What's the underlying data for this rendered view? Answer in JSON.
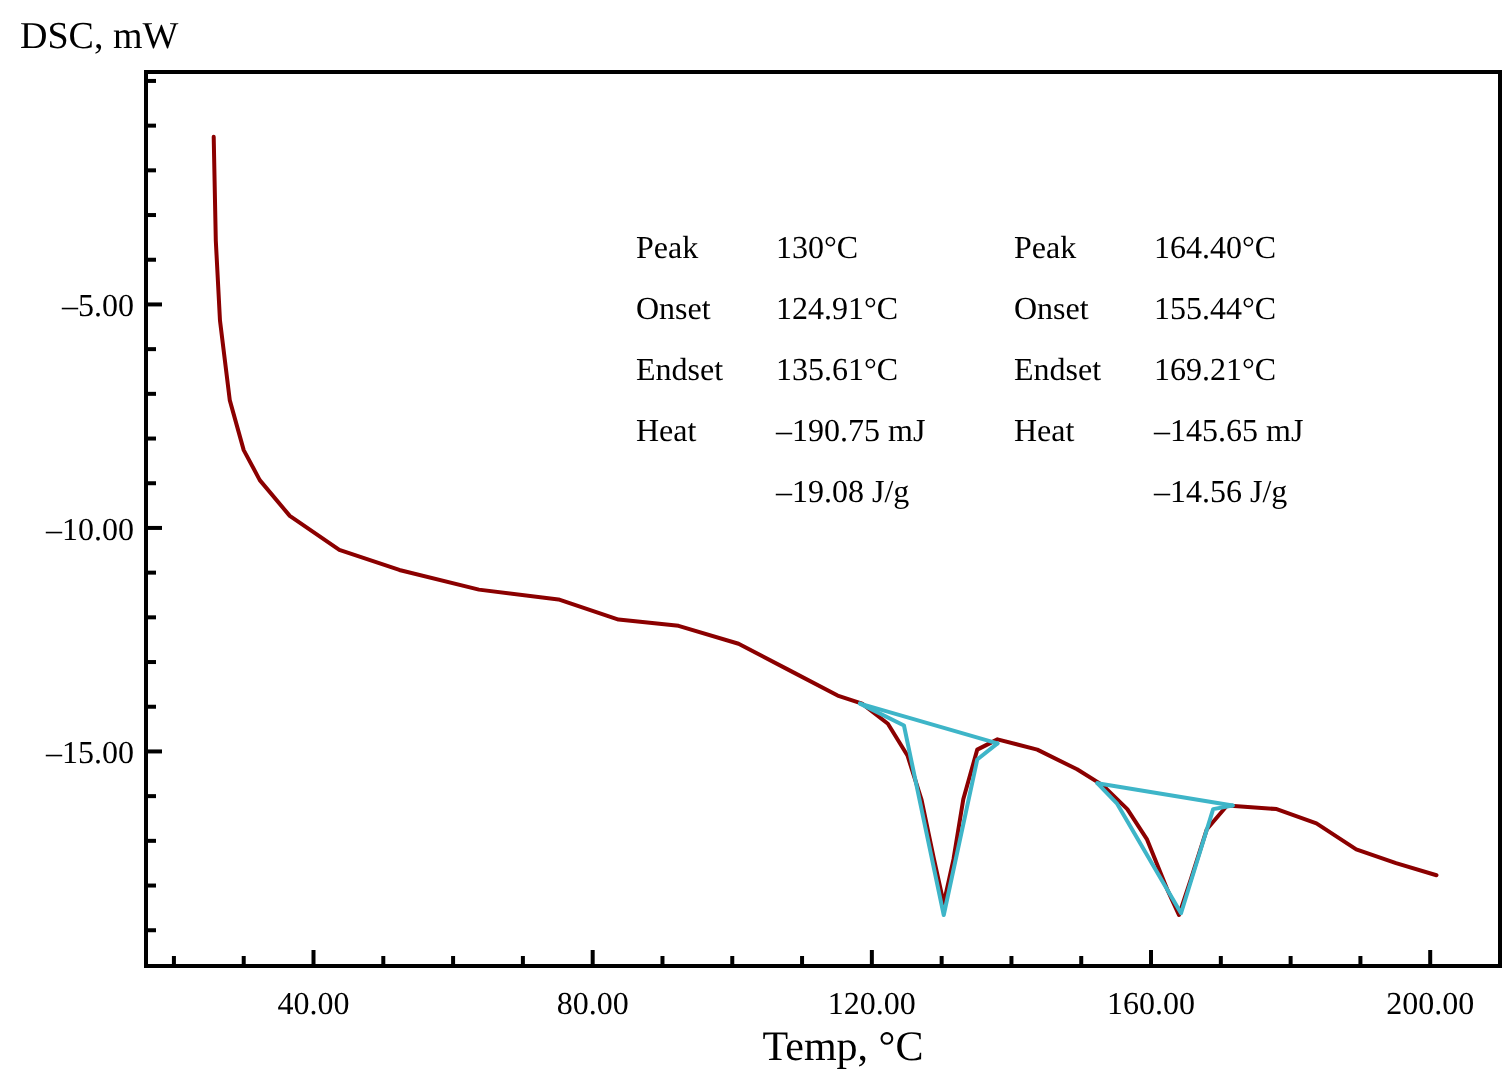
{
  "chart_data": {
    "type": "line",
    "xlabel": "Temp, °C",
    "ylabel": "DSC, mW",
    "xlim": [
      16,
      210
    ],
    "ylim": [
      -19.8,
      0.2
    ],
    "xticks": [
      {
        "value": 20,
        "label": null
      },
      {
        "value": 30,
        "label": null
      },
      {
        "value": 40,
        "label": "40.00"
      },
      {
        "value": 50,
        "label": null
      },
      {
        "value": 60,
        "label": null
      },
      {
        "value": 70,
        "label": null
      },
      {
        "value": 80,
        "label": "80.00"
      },
      {
        "value": 90,
        "label": null
      },
      {
        "value": 100,
        "label": null
      },
      {
        "value": 110,
        "label": null
      },
      {
        "value": 120,
        "label": "120.00"
      },
      {
        "value": 130,
        "label": null
      },
      {
        "value": 140,
        "label": null
      },
      {
        "value": 150,
        "label": null
      },
      {
        "value": 160,
        "label": "160.00"
      },
      {
        "value": 170,
        "label": null
      },
      {
        "value": 180,
        "label": null
      },
      {
        "value": 190,
        "label": null
      },
      {
        "value": 200,
        "label": "200.00"
      },
      {
        "value": 210,
        "label": null
      }
    ],
    "yticks": [
      {
        "value": -19,
        "label": null
      },
      {
        "value": -18,
        "label": null
      },
      {
        "value": -17,
        "label": null
      },
      {
        "value": -16,
        "label": null
      },
      {
        "value": -15,
        "label": "–15.00"
      },
      {
        "value": -14,
        "label": null
      },
      {
        "value": -13,
        "label": null
      },
      {
        "value": -12,
        "label": null
      },
      {
        "value": -11,
        "label": null
      },
      {
        "value": -10,
        "label": "–10.00"
      },
      {
        "value": -9,
        "label": null
      },
      {
        "value": -8,
        "label": null
      },
      {
        "value": -7,
        "label": null
      },
      {
        "value": -6,
        "label": null
      },
      {
        "value": -5,
        "label": "–5.00"
      },
      {
        "value": -4,
        "label": null
      },
      {
        "value": -3,
        "label": null
      },
      {
        "value": -2,
        "label": null
      },
      {
        "value": -1,
        "label": null
      },
      {
        "value": 0,
        "label": null
      }
    ],
    "grid": false,
    "marker": "none",
    "line_style": "solid",
    "series": [
      {
        "color": "#8b0000",
        "x": [
          25.7,
          26.0,
          26.6,
          28,
          30,
          32.3,
          36.6,
          43.7,
          52.3,
          63.7,
          75.1,
          83.7,
          92.3,
          100.9,
          108,
          115.1,
          118.6,
          122.3,
          125.1,
          127.1,
          128.9,
          130.3,
          131.7,
          133.1,
          135.1,
          138,
          143.7,
          149.4,
          153.1,
          156.6,
          159.4,
          162.3,
          164,
          165.7,
          168,
          170.9,
          178,
          183.7,
          189.4,
          195.1,
          200.9
        ],
        "values": [
          -1.25,
          -3.57,
          -5.36,
          -7.14,
          -8.26,
          -8.93,
          -9.73,
          -10.49,
          -10.94,
          -11.38,
          -11.6,
          -12.05,
          -12.19,
          -12.59,
          -13.17,
          -13.75,
          -13.93,
          -14.38,
          -15.09,
          -16.07,
          -17.41,
          -18.4,
          -17.41,
          -16.07,
          -14.96,
          -14.73,
          -14.96,
          -15.4,
          -15.76,
          -16.29,
          -16.96,
          -18.08,
          -18.66,
          -17.86,
          -16.74,
          -16.21,
          -16.29,
          -16.61,
          -17.19,
          -17.5,
          -17.77
        ]
      },
      {
        "color": "#3eb5c8",
        "x": [
          118.3,
          138
        ],
        "values": [
          -13.93,
          -14.82
        ]
      },
      {
        "color": "#3eb5c8",
        "x": [
          118.3,
          124.6,
          130.3,
          135.1,
          138
        ],
        "values": [
          -13.93,
          -14.42,
          -18.66,
          -15.18,
          -14.82
        ]
      },
      {
        "color": "#3eb5c8",
        "x": [
          152.3,
          171.7
        ],
        "values": [
          -15.71,
          -16.21
        ]
      },
      {
        "color": "#3eb5c8",
        "x": [
          152.3,
          155.1,
          164.3,
          168.9,
          171.7
        ],
        "values": [
          -15.71,
          -16.16,
          -18.62,
          -16.29,
          -16.21
        ]
      }
    ],
    "annotations": [
      "Peak",
      "130°C",
      "Peak",
      "164.40°C",
      "Onset",
      "124.91°C",
      "Onset",
      "155.44°C",
      "Endset",
      "135.61°C",
      "Endset",
      "169.21°C",
      "Heat",
      "–190.75 mJ",
      "Heat",
      "–145.65 mJ",
      "–19.08 J/g",
      "–14.56 J/g"
    ]
  }
}
